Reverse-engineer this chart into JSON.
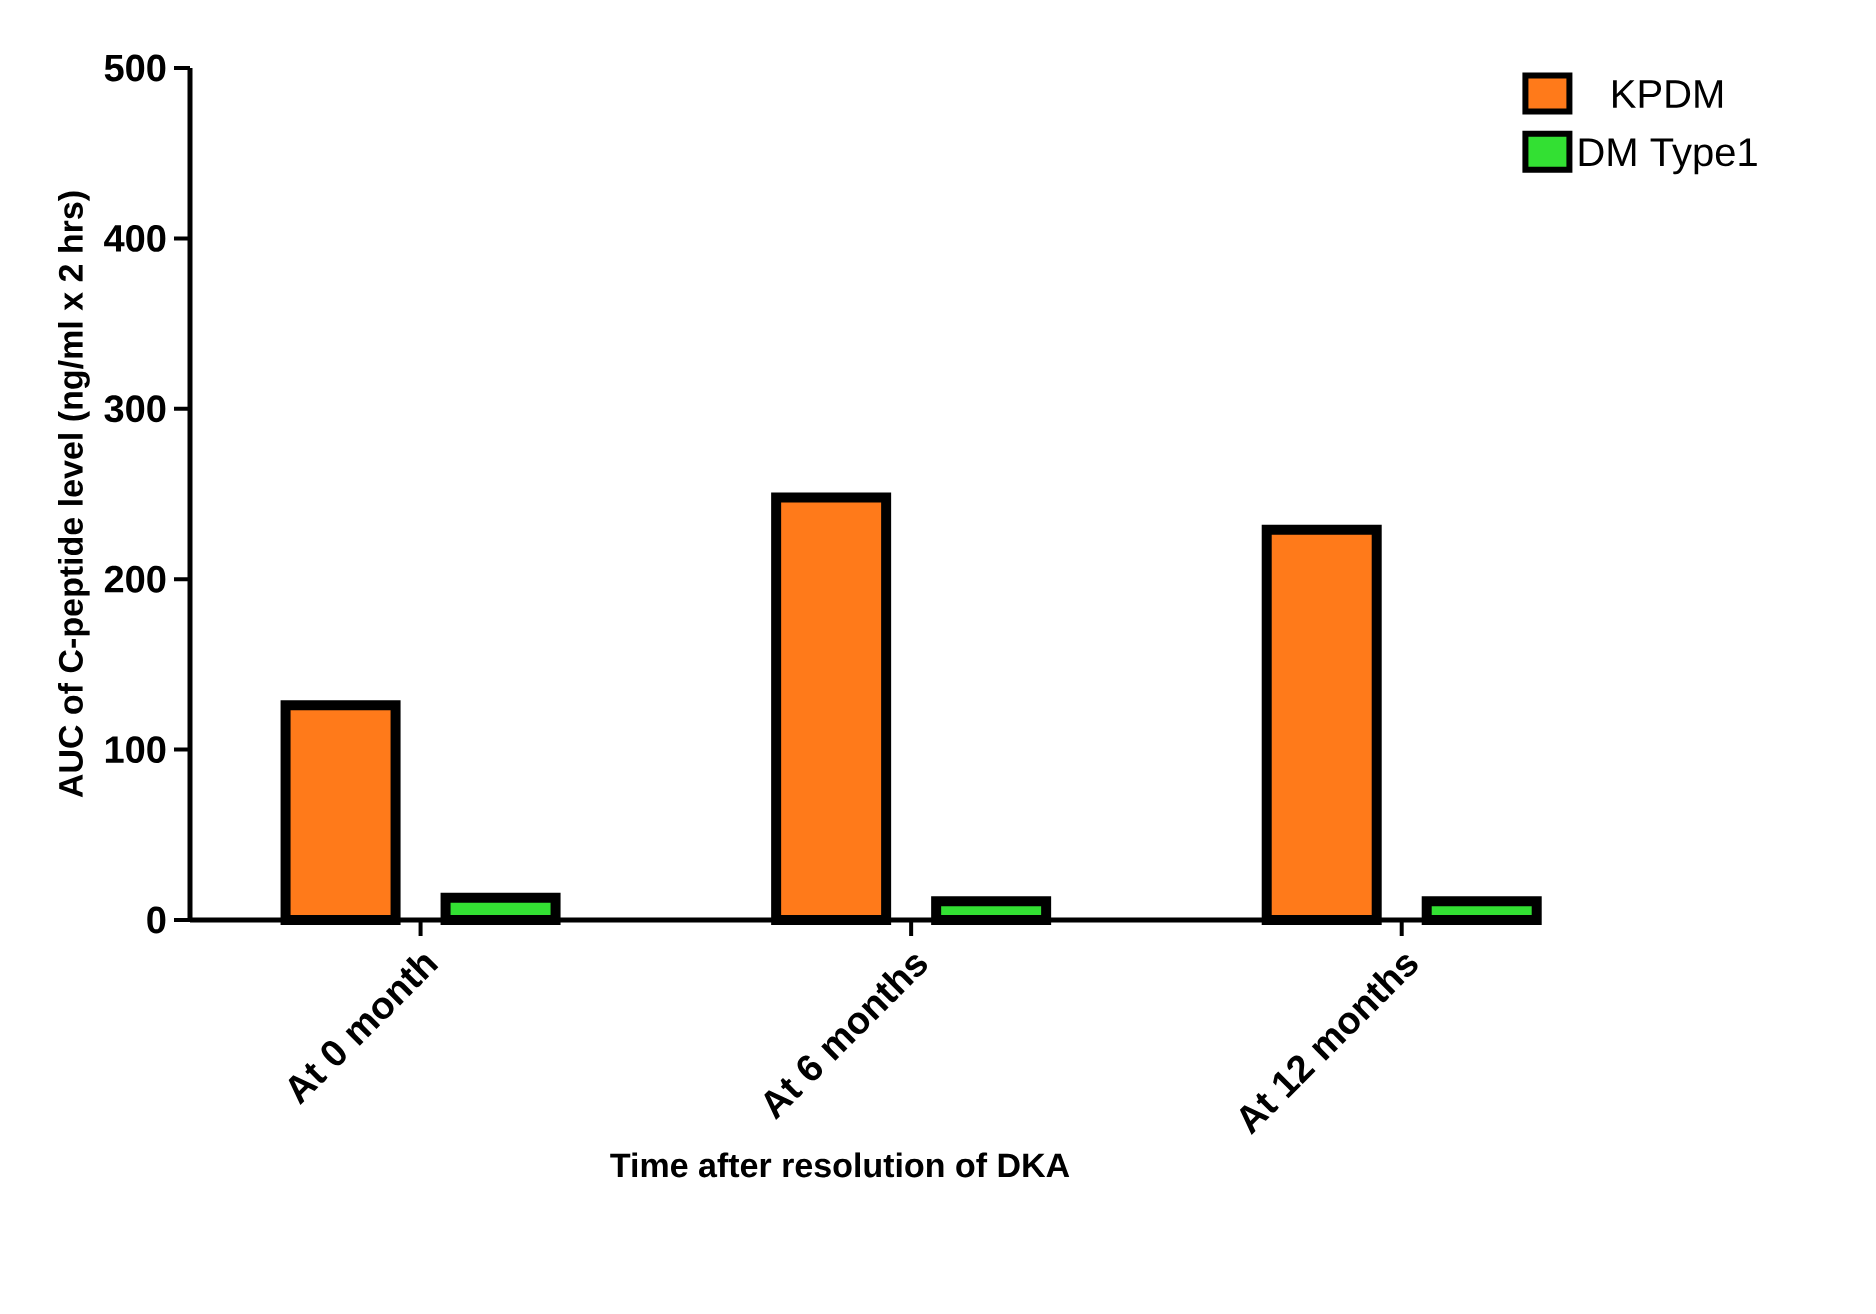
{
  "chart_data": {
    "type": "bar",
    "xlabel": "Time after resolution of DKA",
    "ylabel": "AUC of C-peptide level (ng/ml x 2 hrs)",
    "categories": [
      "At 0 month",
      "At 6 months",
      "At 12 months"
    ],
    "series": [
      {
        "name": "KPDM",
        "color": "#ff7a1a",
        "values": [
          126,
          248,
          229
        ]
      },
      {
        "name": "DM Type1",
        "color": "#33e033",
        "values": [
          13,
          11,
          11
        ]
      }
    ],
    "ylim": [
      0,
      500
    ],
    "yticks": [
      0,
      100,
      200,
      300,
      400,
      500
    ],
    "grid": false,
    "legend": "top right"
  }
}
